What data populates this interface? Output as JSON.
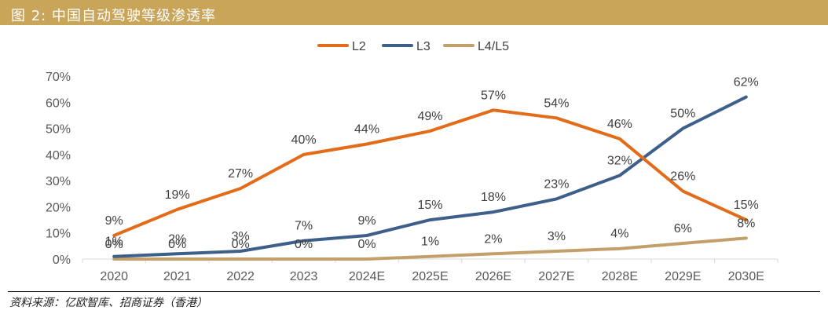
{
  "header": {
    "title": "图 2:  中国自动驾驶等级渗透率"
  },
  "footer": {
    "source": "资料来源：亿欧智库、招商证券（香港）"
  },
  "colors": {
    "banner": "#c9a55a",
    "L2": "#e36c1a",
    "L3": "#3e5f8a",
    "L4L5": "#c3a06a"
  },
  "chart_data": {
    "type": "line",
    "title": "中国自动驾驶等级渗透率",
    "xlabel": "",
    "ylabel": "",
    "ylim": [
      0,
      70
    ],
    "yticks": [
      "0%",
      "10%",
      "20%",
      "30%",
      "40%",
      "50%",
      "60%",
      "70%"
    ],
    "categories": [
      "2020",
      "2021",
      "2022",
      "2023",
      "2024E",
      "2025E",
      "2026E",
      "2027E",
      "2028E",
      "2029E",
      "2030E"
    ],
    "series": [
      {
        "name": "L2",
        "values": [
          9,
          19,
          27,
          40,
          44,
          49,
          57,
          54,
          46,
          26,
          15
        ],
        "labels": [
          "9%",
          "19%",
          "27%",
          "40%",
          "44%",
          "49%",
          "57%",
          "54%",
          "46%",
          "26%",
          "15%"
        ]
      },
      {
        "name": "L3",
        "values": [
          1,
          2,
          3,
          7,
          9,
          15,
          18,
          23,
          32,
          50,
          62
        ],
        "labels": [
          "1%",
          "2%",
          "3%",
          "7%",
          "9%",
          "15%",
          "18%",
          "23%",
          "32%",
          "50%",
          "62%"
        ]
      },
      {
        "name": "L4/L5",
        "values": [
          0,
          0,
          0,
          0,
          0,
          1,
          2,
          3,
          4,
          6,
          8
        ],
        "labels": [
          "0%",
          "0%",
          "0%",
          "0%",
          "0%",
          "1%",
          "2%",
          "3%",
          "4%",
          "6%",
          "8%"
        ]
      }
    ],
    "legend": "top-center",
    "grid": false
  }
}
